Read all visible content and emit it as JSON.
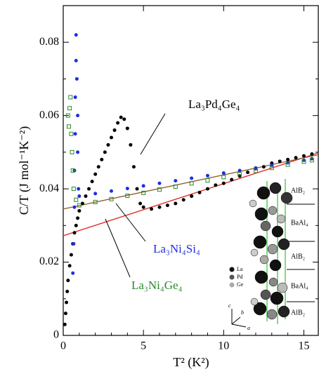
{
  "chart_data": {
    "type": "scatter",
    "x_label": "T² (K²)",
    "y_label": "C/T (J mol⁻¹K⁻²)",
    "xlim": [
      0,
      15.9
    ],
    "ylim": [
      0,
      0.09
    ],
    "xticks": [
      0,
      5,
      10,
      15
    ],
    "yticks": [
      0,
      0.02,
      0.04,
      0.06,
      0.08
    ],
    "series": [
      {
        "name": "La₃Pd₄Ge₄",
        "color": "#000000",
        "marker": "circle",
        "x": [
          0.1,
          0.15,
          0.2,
          0.25,
          0.3,
          0.4,
          0.5,
          0.6,
          0.7,
          0.8,
          0.9,
          1.0,
          1.2,
          1.4,
          1.6,
          1.8,
          2.0,
          2.2,
          2.4,
          2.6,
          2.8,
          3.0,
          3.2,
          3.4,
          3.6,
          3.8,
          4.0,
          4.2,
          4.4,
          4.6,
          4.8,
          5.0,
          5.5,
          6.0,
          6.5,
          7.0,
          7.5,
          8.0,
          8.5,
          9.0,
          9.5,
          10.0,
          10.5,
          11.0,
          11.5,
          12.0,
          12.5,
          13.0,
          13.5,
          14.0,
          14.5,
          15.0,
          15.5
        ],
        "values": [
          0.003,
          0.006,
          0.009,
          0.012,
          0.015,
          0.019,
          0.022,
          0.025,
          0.028,
          0.03,
          0.032,
          0.034,
          0.036,
          0.038,
          0.04,
          0.042,
          0.044,
          0.046,
          0.048,
          0.05,
          0.052,
          0.054,
          0.056,
          0.058,
          0.0595,
          0.059,
          0.0565,
          0.052,
          0.046,
          0.04,
          0.036,
          0.035,
          0.0345,
          0.035,
          0.0355,
          0.036,
          0.037,
          0.038,
          0.039,
          0.04,
          0.041,
          0.0415,
          0.0425,
          0.0435,
          0.0445,
          0.0455,
          0.046,
          0.047,
          0.0475,
          0.048,
          0.0485,
          0.049,
          0.0495
        ]
      },
      {
        "name": "La₃Ni₄Si₄",
        "color": "#1f2ee0",
        "marker": "circle",
        "x": [
          0.6,
          0.65,
          0.7,
          0.7,
          0.75,
          0.75,
          0.8,
          0.8,
          0.85,
          0.9,
          0.9,
          0.95,
          1,
          2,
          3,
          4,
          5,
          6,
          7,
          8,
          9,
          10,
          11,
          12,
          13,
          14,
          15,
          15.5
        ],
        "values": [
          0.017,
          0.025,
          0.035,
          0.045,
          0.055,
          0.065,
          0.075,
          0.082,
          0.07,
          0.06,
          0.05,
          0.04,
          0.038,
          0.0387,
          0.0394,
          0.0401,
          0.0408,
          0.0415,
          0.0422,
          0.0429,
          0.0436,
          0.0443,
          0.045,
          0.0457,
          0.0464,
          0.0471,
          0.0478,
          0.0482
        ]
      },
      {
        "name": "La₃Ni₄Ge₄",
        "color": "#2a8a2a",
        "marker": "square",
        "x": [
          0.3,
          0.35,
          0.4,
          0.45,
          0.5,
          0.55,
          0.6,
          0.65,
          0.8,
          1,
          2,
          3,
          4,
          5,
          6,
          7,
          8,
          9,
          10,
          11,
          12,
          13,
          14,
          15,
          15.5
        ],
        "values": [
          0.06,
          0.057,
          0.062,
          0.065,
          0.055,
          0.05,
          0.045,
          0.04,
          0.037,
          0.0355,
          0.0364,
          0.0372,
          0.0381,
          0.0389,
          0.0398,
          0.0406,
          0.0415,
          0.0423,
          0.0432,
          0.044,
          0.0449,
          0.0457,
          0.0466,
          0.0474,
          0.0478
        ]
      }
    ],
    "fits": [
      {
        "color": "#e02020",
        "x": [
          0,
          15.9
        ],
        "values": [
          0.0272,
          0.0498
        ]
      },
      {
        "color": "#8b5a2b",
        "x": [
          0,
          15.9
        ],
        "values": [
          0.0345,
          0.0493
        ]
      }
    ],
    "inset": {
      "layers": [
        "AlB₂",
        "BaAl₄",
        "AlB₂",
        "BaAl₄",
        "AlB₂"
      ],
      "atoms": [
        "La",
        "Pd",
        "Ge"
      ],
      "axes": [
        "a",
        "b",
        "c"
      ]
    }
  }
}
